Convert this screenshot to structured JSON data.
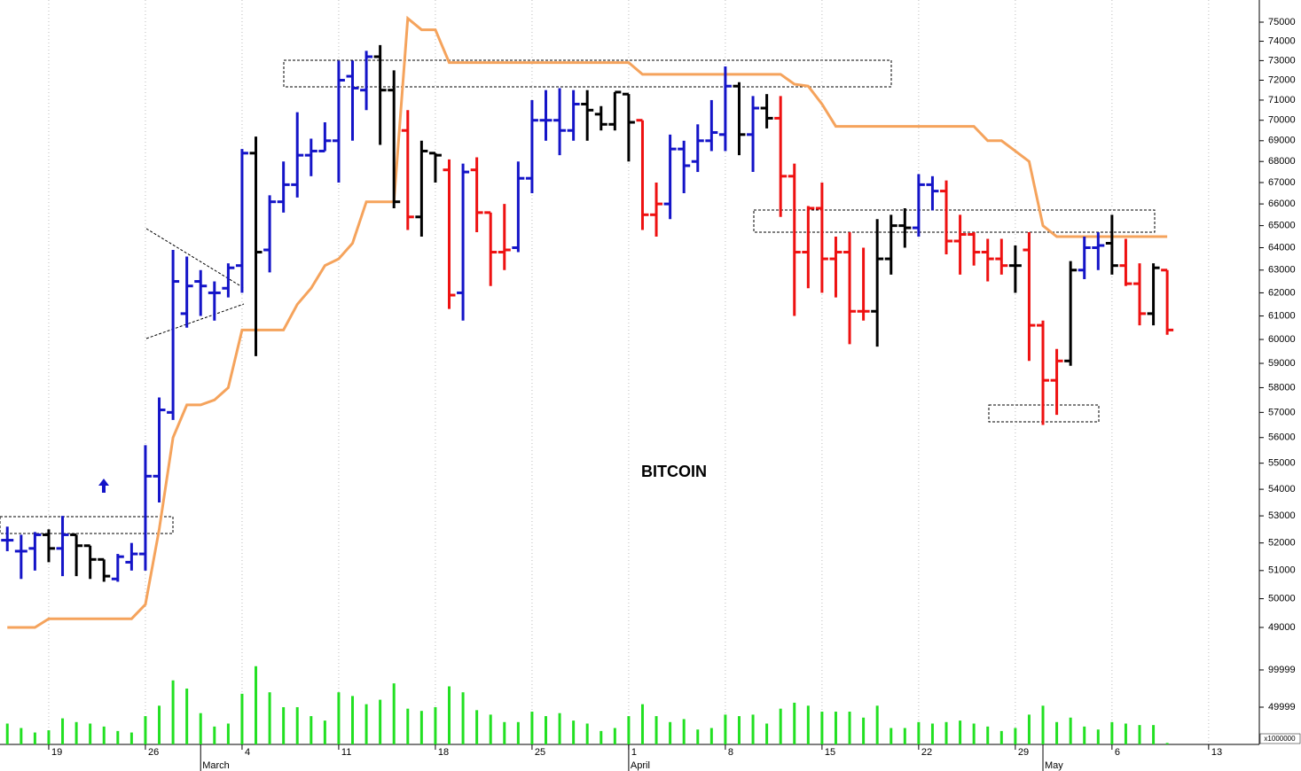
{
  "chart_data": {
    "type": "ohlc",
    "title": "BITCOIN",
    "log_scale": true,
    "ylim": [
      48333,
      76178
    ],
    "yticks": [
      49000,
      50000,
      51000,
      52000,
      53000,
      54000,
      55000,
      56000,
      57000,
      58000,
      59000,
      60000,
      61000,
      62000,
      63000,
      64000,
      65000,
      66000,
      67000,
      68000,
      69000,
      70000,
      71000,
      72000,
      73000,
      74000,
      75000
    ],
    "xlim": [
      -0.53,
      90.67
    ],
    "xticks": [
      {
        "value": 3,
        "label": "19"
      },
      {
        "value": 10,
        "label": "26"
      },
      {
        "value": 17,
        "label": "4"
      },
      {
        "value": 24,
        "label": "11"
      },
      {
        "value": 31,
        "label": "18"
      },
      {
        "value": 38,
        "label": "25"
      },
      {
        "value": 45,
        "label": "1"
      },
      {
        "value": 52,
        "label": "8"
      },
      {
        "value": 59,
        "label": "15"
      },
      {
        "value": 66,
        "label": "22"
      },
      {
        "value": 73,
        "label": "29"
      },
      {
        "value": 80,
        "label": "6"
      },
      {
        "value": 87,
        "label": "13"
      }
    ],
    "months": [
      {
        "value": 14,
        "label": "March"
      },
      {
        "value": 45,
        "label": "April"
      },
      {
        "value": 75,
        "label": "May"
      }
    ],
    "grid": true,
    "open": [
      52100,
      51700,
      51800,
      52300,
      51800,
      52300,
      51900,
      51400,
      50700,
      51300,
      51600,
      54500,
      57000,
      61100,
      62500,
      62000,
      62200,
      63200,
      68400,
      63900,
      66100,
      66900,
      68300,
      68500,
      69000,
      72200,
      71500,
      73200,
      71500,
      69500,
      65400,
      68400,
      67600,
      62000,
      67600,
      65600,
      63800,
      64000,
      67200,
      70000,
      70000,
      69500,
      70800,
      70300,
      69800,
      71300,
      70000,
      65500,
      66000,
      68600,
      68000,
      69000,
      69300,
      71700,
      69300,
      70600,
      70100,
      67300,
      63800,
      65800,
      63500,
      63800,
      61200,
      61200,
      63500,
      65000,
      64900,
      66900,
      66600,
      64300,
      64600,
      63800,
      63500,
      63200,
      63900,
      60600,
      58300,
      59100,
      63000,
      64000,
      64200,
      63200,
      62400,
      61100,
      63000
    ],
    "high": [
      52600,
      52300,
      52400,
      52500,
      53000,
      52300,
      51900,
      51400,
      51600,
      52000,
      55700,
      57600,
      63900,
      63600,
      63000,
      62500,
      63300,
      68600,
      69200,
      66400,
      68000,
      70400,
      69100,
      69900,
      73000,
      73000,
      73500,
      73800,
      72500,
      70500,
      69000,
      68400,
      68100,
      67900,
      68200,
      65600,
      66000,
      68000,
      71000,
      71500,
      71600,
      71500,
      71500,
      70700,
      71400,
      71300,
      70000,
      67000,
      69300,
      69000,
      69800,
      71000,
      72700,
      71900,
      71200,
      71300,
      71200,
      67900,
      65900,
      67000,
      64500,
      64700,
      64000,
      65300,
      65500,
      65800,
      67400,
      67300,
      67100,
      65500,
      64700,
      64400,
      64400,
      64100,
      64700,
      60800,
      59600,
      63400,
      64500,
      64700,
      65500,
      64400,
      63300,
      63300,
      63000
    ],
    "low": [
      51700,
      50700,
      51000,
      51300,
      50800,
      50800,
      50700,
      50600,
      50600,
      51000,
      51000,
      53500,
      56700,
      60500,
      61000,
      60800,
      61800,
      62000,
      59300,
      62900,
      65600,
      66300,
      67300,
      68500,
      67000,
      69000,
      70500,
      68800,
      65800,
      64800,
      64500,
      67000,
      61300,
      60800,
      64700,
      62300,
      63000,
      63800,
      66500,
      69000,
      68300,
      69000,
      69000,
      69500,
      69500,
      68000,
      64800,
      64500,
      65300,
      66500,
      67500,
      68500,
      68500,
      68300,
      67500,
      69600,
      65400,
      61000,
      62200,
      62000,
      61800,
      59800,
      60800,
      59700,
      62800,
      64000,
      64500,
      65700,
      63700,
      62800,
      63200,
      62500,
      62800,
      62000,
      59100,
      56500,
      56900,
      58900,
      62600,
      63000,
      62800,
      62300,
      60600,
      60600,
      60200
    ],
    "close": [
      52100,
      51700,
      52300,
      51800,
      52300,
      51900,
      51400,
      50800,
      51500,
      51600,
      54500,
      57100,
      62500,
      62300,
      62300,
      62000,
      63100,
      68400,
      63800,
      66100,
      66900,
      68300,
      68500,
      69000,
      72000,
      71600,
      73200,
      71500,
      66100,
      65400,
      68500,
      68300,
      61900,
      67500,
      65600,
      63800,
      63900,
      67200,
      70000,
      70000,
      69500,
      70800,
      70500,
      69800,
      71400,
      69900,
      65500,
      66000,
      68600,
      67800,
      69000,
      69400,
      71700,
      69300,
      70600,
      70100,
      67300,
      63800,
      65800,
      63500,
      63800,
      61200,
      61200,
      63500,
      65000,
      64900,
      66900,
      66600,
      64300,
      64600,
      63800,
      63500,
      63200,
      63200,
      60600,
      58300,
      59100,
      63000,
      64000,
      64100,
      63200,
      62400,
      61100,
      63100,
      60400
    ],
    "colors": [
      "#1414c8",
      "#1414c8",
      "#1414c8",
      "#000000",
      "#1414c8",
      "#000000",
      "#000000",
      "#000000",
      "#1414c8",
      "#1414c8",
      "#1414c8",
      "#1414c8",
      "#1414c8",
      "#1414c8",
      "#1414c8",
      "#1414c8",
      "#1414c8",
      "#1414c8",
      "#000000",
      "#1414c8",
      "#1414c8",
      "#1414c8",
      "#1414c8",
      "#1414c8",
      "#1414c8",
      "#1414c8",
      "#1414c8",
      "#000000",
      "#000000",
      "#ee1111",
      "#000000",
      "#000000",
      "#ee1111",
      "#1414c8",
      "#ee1111",
      "#ee1111",
      "#ee1111",
      "#1414c8",
      "#1414c8",
      "#1414c8",
      "#1414c8",
      "#1414c8",
      "#000000",
      "#000000",
      "#000000",
      "#000000",
      "#ee1111",
      "#ee1111",
      "#1414c8",
      "#1414c8",
      "#1414c8",
      "#1414c8",
      "#1414c8",
      "#000000",
      "#1414c8",
      "#000000",
      "#ee1111",
      "#ee1111",
      "#ee1111",
      "#ee1111",
      "#ee1111",
      "#ee1111",
      "#ee1111",
      "#000000",
      "#000000",
      "#000000",
      "#1414c8",
      "#1414c8",
      "#ee1111",
      "#ee1111",
      "#ee1111",
      "#ee1111",
      "#ee1111",
      "#000000",
      "#ee1111",
      "#ee1111",
      "#ee1111",
      "#000000",
      "#1414c8",
      "#1414c8",
      "#000000",
      "#ee1111",
      "#ee1111",
      "#000000",
      "#ee1111"
    ],
    "line": {
      "color": "#f5a35c",
      "values": [
        49000,
        49000,
        49000,
        49300,
        49300,
        49300,
        49300,
        49300,
        49300,
        49300,
        49800,
        52500,
        56000,
        57300,
        57300,
        57500,
        58000,
        60400,
        60400,
        60400,
        60400,
        61500,
        62200,
        63200,
        63500,
        64200,
        66100,
        66100,
        66100,
        75200,
        74600,
        74600,
        72900,
        72900,
        72900,
        72900,
        72900,
        72900,
        72900,
        72900,
        72900,
        72900,
        72900,
        72900,
        72900,
        72900,
        72300,
        72300,
        72300,
        72300,
        72300,
        72300,
        72300,
        72300,
        72300,
        72300,
        72300,
        71800,
        71700,
        70800,
        69700,
        69700,
        69700,
        69700,
        69700,
        69700,
        69700,
        69700,
        69700,
        69700,
        69700,
        69000,
        69000,
        68500,
        68000,
        65000,
        64500,
        64500,
        64500,
        64500,
        64500,
        64500,
        64500,
        64500,
        64500
      ]
    },
    "volume": {
      "color": "#22e022",
      "ylim": [
        0,
        119000
      ],
      "yticks": [
        49999,
        99999
      ],
      "unit_label": "x1000000",
      "values": [
        28000,
        22000,
        16000,
        19000,
        35000,
        30000,
        28000,
        24000,
        18000,
        16000,
        38000,
        52000,
        86000,
        75000,
        42000,
        24000,
        28000,
        68000,
        105000,
        70000,
        50000,
        50000,
        38000,
        32000,
        70000,
        65000,
        54000,
        60000,
        82000,
        48000,
        45000,
        50000,
        78000,
        70000,
        46000,
        40000,
        30000,
        30000,
        44000,
        38000,
        42000,
        32000,
        28000,
        18000,
        22000,
        38000,
        54000,
        38000,
        30000,
        34000,
        20000,
        22000,
        40000,
        38000,
        40000,
        28000,
        48000,
        56000,
        52000,
        44000,
        44000,
        44000,
        36000,
        52000,
        22000,
        22000,
        30000,
        28000,
        30000,
        32000,
        28000,
        24000,
        18000,
        22000,
        40000,
        52000,
        30000,
        36000,
        24000,
        20000,
        30000,
        28000,
        26000,
        26000,
        2000
      ]
    }
  }
}
